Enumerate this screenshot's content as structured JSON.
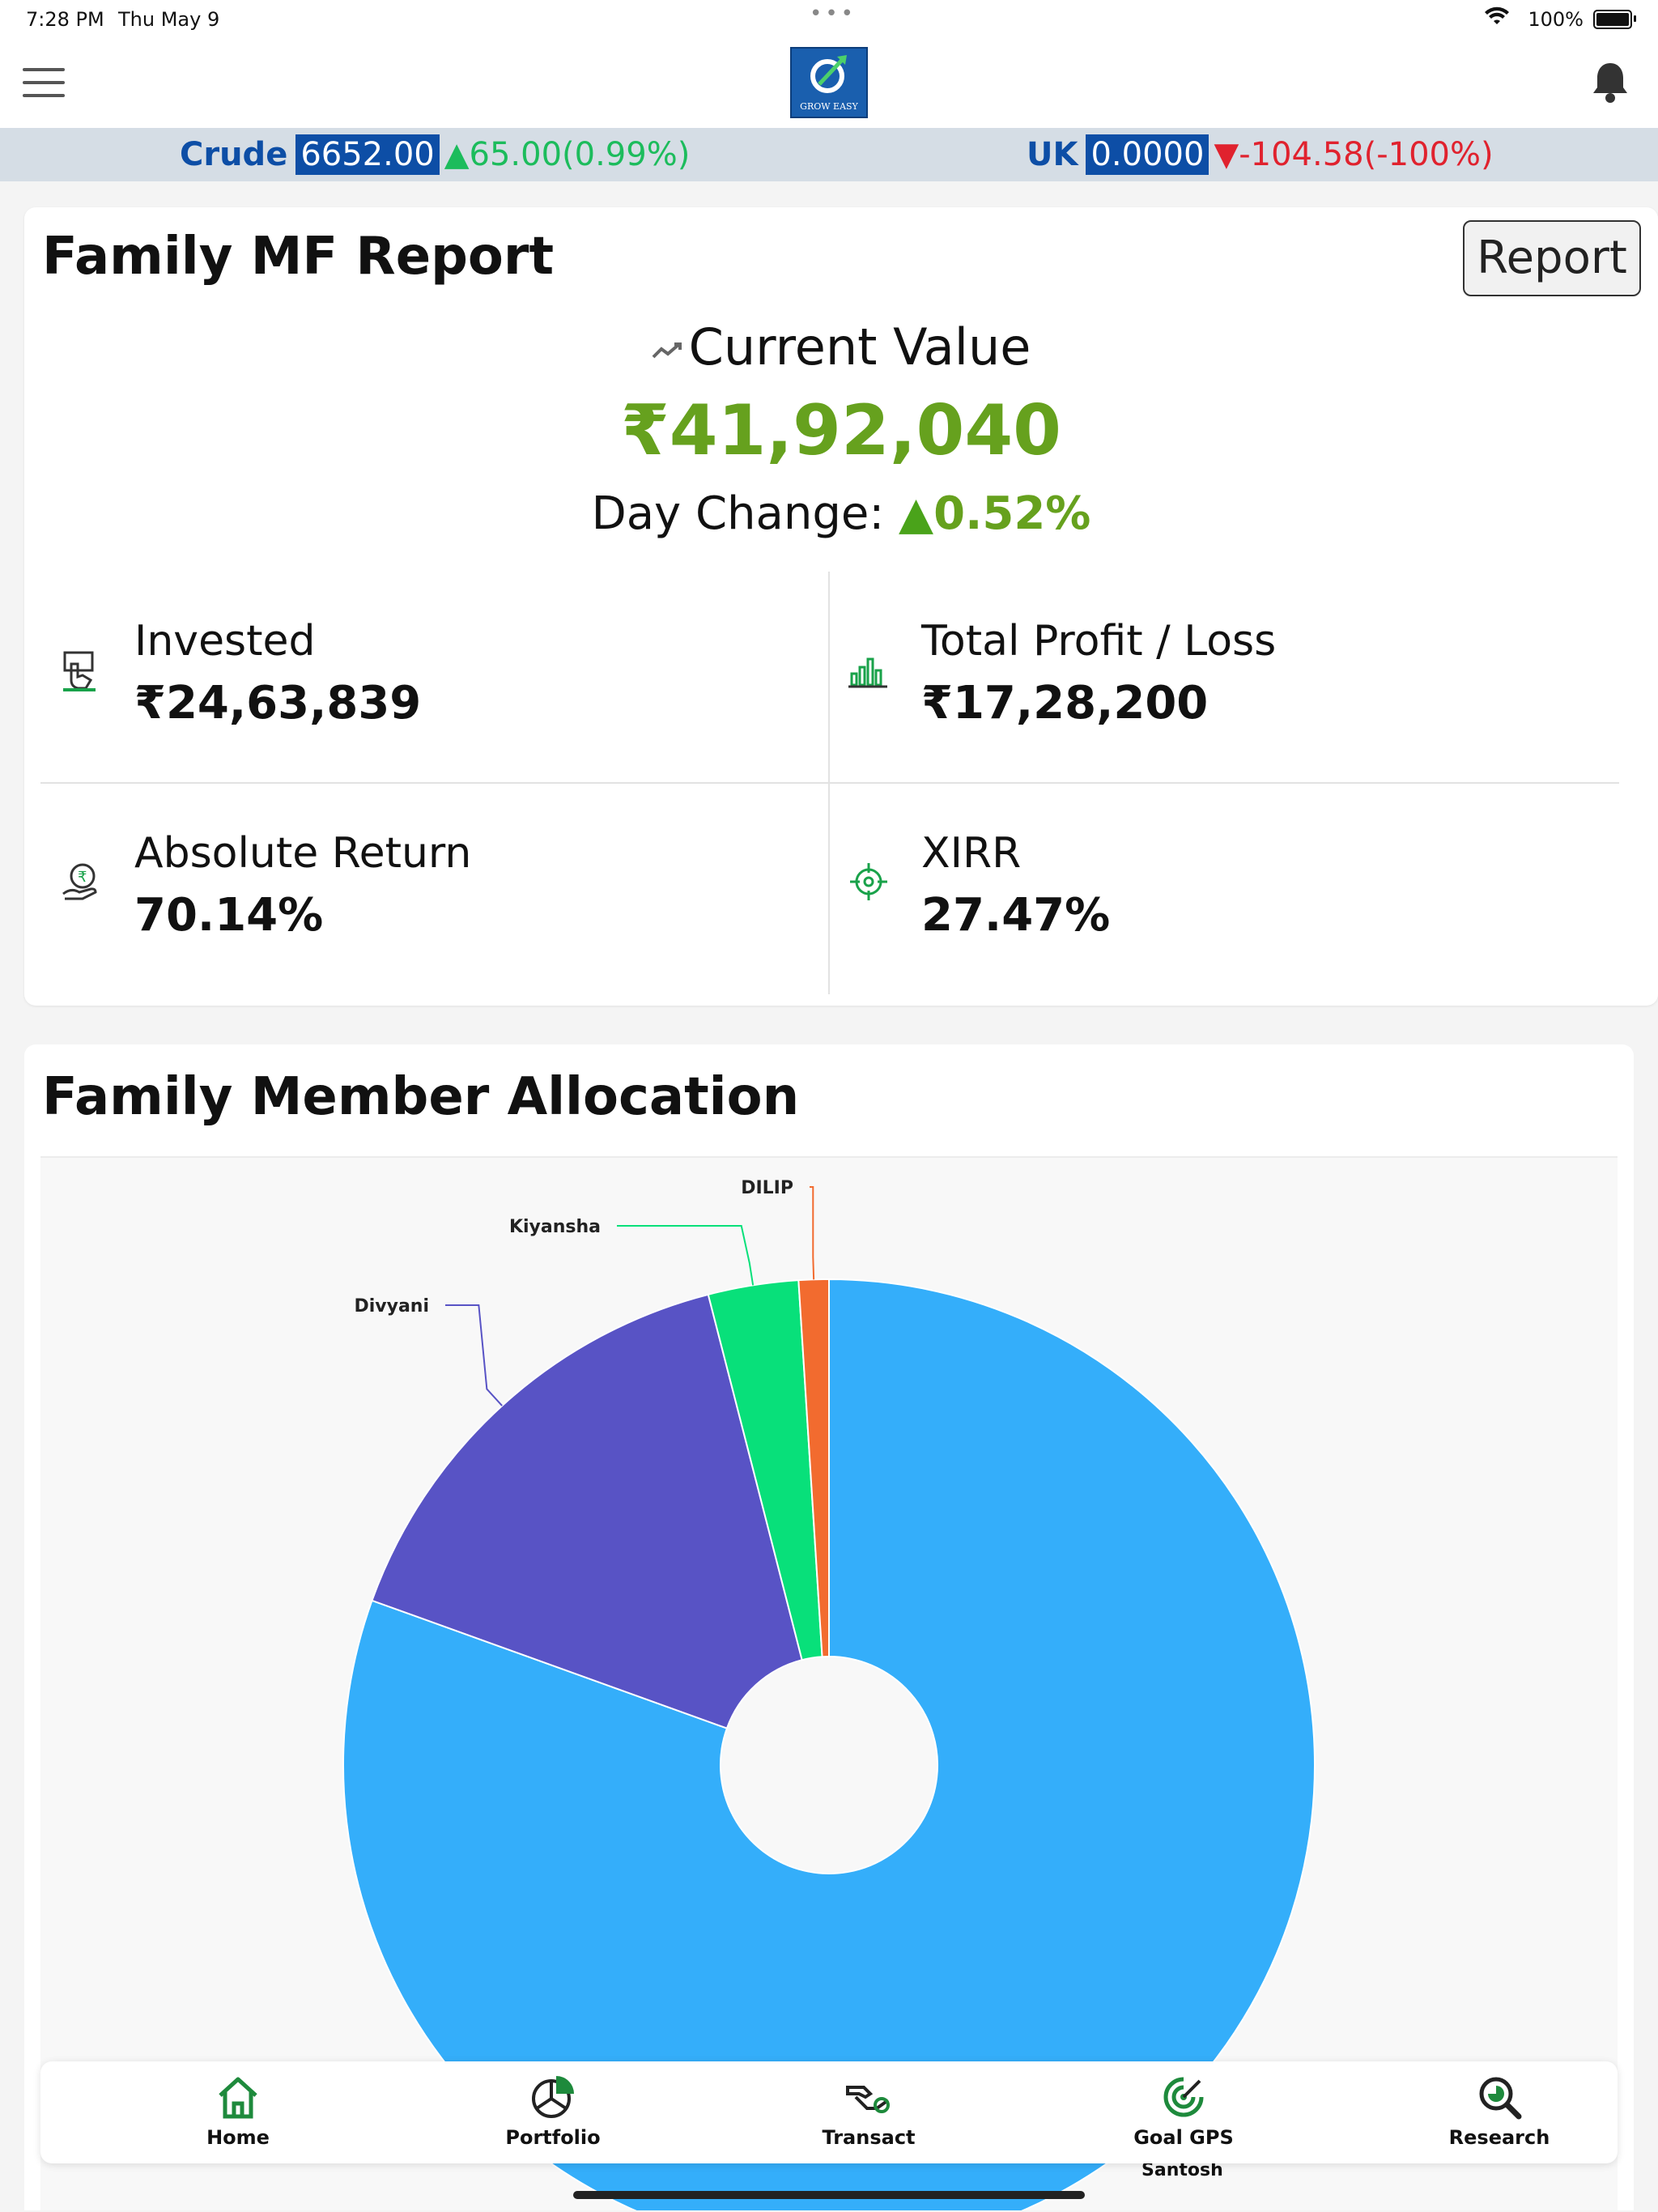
{
  "status": {
    "time": "7:28 PM",
    "date": "Thu May 9",
    "battery": "100%"
  },
  "header": {
    "logo_text": "GROW EASY"
  },
  "ticker": [
    {
      "name": "Crude",
      "value": "6652.00",
      "change": "65.00(0.99%)",
      "direction": "up"
    },
    {
      "name": "UK",
      "value": "0.0000",
      "change": "-104.58(-100%)",
      "direction": "down"
    }
  ],
  "report": {
    "title": "Family MF Report",
    "button_label": "Report",
    "current_value_label": "Current Value",
    "current_value": "₹41,92,040",
    "day_change_label": "Day Change:",
    "day_change_arrow": "▲",
    "day_change_value": "0.52%",
    "metrics": [
      {
        "label": "Invested",
        "value": "₹24,63,839",
        "icon": "invested-icon"
      },
      {
        "label": "Total Profit / Loss",
        "value": "₹17,28,200",
        "icon": "bar-chart-icon"
      },
      {
        "label": "Absolute Return",
        "value": "70.14%",
        "icon": "money-hand-icon"
      },
      {
        "label": "XIRR",
        "value": "27.47%",
        "icon": "target-icon"
      }
    ]
  },
  "allocation": {
    "title": "Family Member Allocation"
  },
  "chart_data": {
    "type": "pie",
    "donut": true,
    "labels": [
      "Santosh",
      "Divyani",
      "Kiyansha",
      "DILIP"
    ],
    "values": [
      80.5,
      15.5,
      3.0,
      1.0
    ],
    "colors": [
      "#34aefa",
      "#5853c5",
      "#08e07a",
      "#f26b2f"
    ]
  },
  "nav": [
    {
      "label": "Home",
      "icon": "home-icon"
    },
    {
      "label": "Portfolio",
      "icon": "portfolio-icon"
    },
    {
      "label": "Transact",
      "icon": "transact-icon"
    },
    {
      "label": "Goal GPS",
      "icon": "goal-gps-icon"
    },
    {
      "label": "Research",
      "icon": "research-icon"
    }
  ],
  "colors": {
    "brand_blue": "#0d4ea6",
    "positive_green": "#66a11e",
    "nav_green": "#1e8a3c"
  }
}
